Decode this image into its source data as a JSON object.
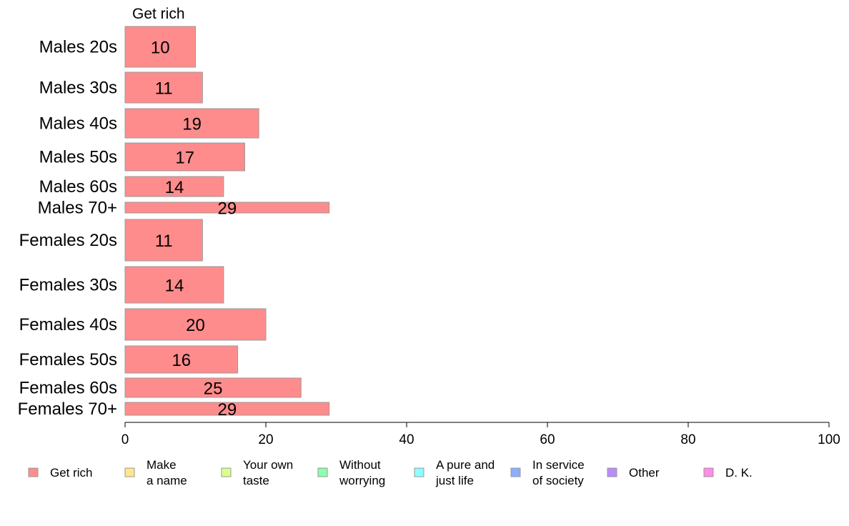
{
  "chart_data": {
    "type": "bar",
    "orientation": "horizontal",
    "stacked": true,
    "title": "",
    "xlabel": "",
    "ylabel": "",
    "xlim": [
      0,
      100
    ],
    "x_ticks": [
      0,
      20,
      40,
      60,
      80,
      100
    ],
    "grid": false,
    "legend_position": "bottom",
    "categories": [
      "Males 20s",
      "Males 30s",
      "Males 40s",
      "Males 50s",
      "Males 60s",
      "Males 70+",
      "Females 20s",
      "Females 30s",
      "Females 40s",
      "Females 50s",
      "Females 60s",
      "Females 70+"
    ],
    "series_header": "Get rich",
    "series": [
      {
        "name": "Get rich",
        "color": "#ff8c8c",
        "values": [
          10,
          11,
          19,
          17,
          14,
          29,
          11,
          14,
          20,
          16,
          25,
          29
        ]
      }
    ],
    "legend": [
      {
        "lines": [
          "Get rich"
        ],
        "color": "#ff8c8c"
      },
      {
        "lines": [
          "Make",
          "a name"
        ],
        "color": "#ffe58c"
      },
      {
        "lines": [
          "Your own",
          "taste"
        ],
        "color": "#d9ff8c"
      },
      {
        "lines": [
          "Without",
          "worrying"
        ],
        "color": "#8cffb0"
      },
      {
        "lines": [
          "A pure and",
          "just life"
        ],
        "color": "#8cffff"
      },
      {
        "lines": [
          "In service",
          "of society"
        ],
        "color": "#8caeff"
      },
      {
        "lines": [
          "Other"
        ],
        "color": "#b98cff"
      },
      {
        "lines": [
          "D. K."
        ],
        "color": "#ff8ce8"
      }
    ]
  }
}
